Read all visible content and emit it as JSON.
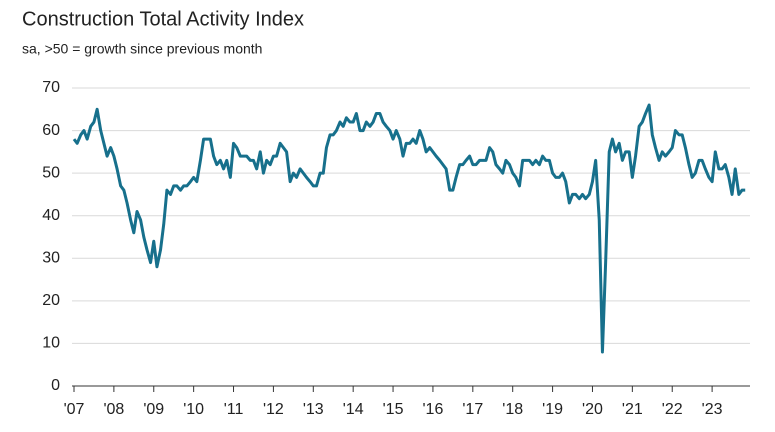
{
  "chart_data": {
    "type": "line",
    "title": "Construction Total Activity Index",
    "subtitle": "sa, >50 = growth since previous month",
    "x": [
      2007.0,
      2007.08,
      2007.17,
      2007.25,
      2007.33,
      2007.42,
      2007.5,
      2007.58,
      2007.67,
      2007.75,
      2007.83,
      2007.92,
      2008.0,
      2008.08,
      2008.17,
      2008.25,
      2008.33,
      2008.42,
      2008.5,
      2008.58,
      2008.67,
      2008.75,
      2008.83,
      2008.92,
      2009.0,
      2009.08,
      2009.17,
      2009.25,
      2009.33,
      2009.42,
      2009.5,
      2009.58,
      2009.67,
      2009.75,
      2009.83,
      2009.92,
      2010.0,
      2010.08,
      2010.17,
      2010.25,
      2010.33,
      2010.42,
      2010.5,
      2010.58,
      2010.67,
      2010.75,
      2010.83,
      2010.92,
      2011.0,
      2011.08,
      2011.17,
      2011.25,
      2011.33,
      2011.42,
      2011.5,
      2011.58,
      2011.67,
      2011.75,
      2011.83,
      2011.92,
      2012.0,
      2012.08,
      2012.17,
      2012.25,
      2012.33,
      2012.42,
      2012.5,
      2012.58,
      2012.67,
      2012.75,
      2012.83,
      2012.92,
      2013.0,
      2013.08,
      2013.17,
      2013.25,
      2013.33,
      2013.42,
      2013.5,
      2013.58,
      2013.67,
      2013.75,
      2013.83,
      2013.92,
      2014.0,
      2014.08,
      2014.17,
      2014.25,
      2014.33,
      2014.42,
      2014.5,
      2014.58,
      2014.67,
      2014.75,
      2014.83,
      2014.92,
      2015.0,
      2015.08,
      2015.17,
      2015.25,
      2015.33,
      2015.42,
      2015.5,
      2015.58,
      2015.67,
      2015.75,
      2015.83,
      2015.92,
      2016.0,
      2016.08,
      2016.17,
      2016.25,
      2016.33,
      2016.42,
      2016.5,
      2016.58,
      2016.67,
      2016.75,
      2016.83,
      2016.92,
      2017.0,
      2017.08,
      2017.17,
      2017.25,
      2017.33,
      2017.42,
      2017.5,
      2017.58,
      2017.67,
      2017.75,
      2017.83,
      2017.92,
      2018.0,
      2018.08,
      2018.17,
      2018.25,
      2018.33,
      2018.42,
      2018.5,
      2018.58,
      2018.67,
      2018.75,
      2018.83,
      2018.92,
      2019.0,
      2019.08,
      2019.17,
      2019.25,
      2019.33,
      2019.42,
      2019.5,
      2019.58,
      2019.67,
      2019.75,
      2019.83,
      2019.92,
      2020.0,
      2020.08,
      2020.17,
      2020.25,
      2020.33,
      2020.42,
      2020.5,
      2020.58,
      2020.67,
      2020.75,
      2020.83,
      2020.92,
      2021.0,
      2021.08,
      2021.17,
      2021.25,
      2021.33,
      2021.42,
      2021.5,
      2021.58,
      2021.67,
      2021.75,
      2021.83,
      2021.92,
      2022.0,
      2022.08,
      2022.17,
      2022.25,
      2022.33,
      2022.42,
      2022.5,
      2022.58,
      2022.67,
      2022.75,
      2022.83,
      2022.92,
      2023.0,
      2023.08,
      2023.17,
      2023.25,
      2023.33,
      2023.42,
      2023.5,
      2023.58,
      2023.67,
      2023.75,
      2023.83
    ],
    "values": [
      58,
      57,
      59,
      60,
      58,
      61,
      62,
      65,
      60,
      57,
      54,
      56,
      54,
      51,
      47,
      46,
      43,
      39,
      36,
      41,
      39,
      35,
      32,
      29,
      34,
      28,
      32,
      38,
      46,
      45,
      47,
      47,
      46,
      47,
      47,
      48,
      49,
      48,
      53,
      58,
      58,
      58,
      54,
      52,
      53,
      51,
      53,
      49,
      57,
      56,
      54,
      54,
      54,
      53,
      53,
      51,
      55,
      50,
      53,
      52,
      54,
      54,
      57,
      56,
      55,
      48,
      50,
      49,
      51,
      50,
      49,
      48,
      47,
      47,
      50,
      50,
      56,
      59,
      59,
      60,
      62,
      61,
      63,
      62,
      62,
      64,
      60,
      60,
      62,
      61,
      62,
      64,
      64,
      62,
      61,
      60,
      58,
      60,
      58,
      54,
      57,
      57,
      58,
      57,
      60,
      58,
      55,
      56,
      55,
      54,
      53,
      52,
      51,
      46,
      46,
      49,
      52,
      52,
      53,
      54,
      52,
      52,
      53,
      53,
      53,
      56,
      55,
      52,
      51,
      50,
      53,
      52,
      50,
      49,
      47,
      53,
      53,
      53,
      52,
      53,
      52,
      54,
      53,
      53,
      50,
      49,
      49,
      50,
      48,
      43,
      45,
      45,
      44,
      45,
      44,
      45,
      48,
      53,
      39,
      8,
      29,
      55,
      58,
      55,
      57,
      53,
      55,
      55,
      49,
      54,
      61,
      62,
      64,
      66,
      59,
      56,
      53,
      55,
      54,
      55,
      56,
      60,
      59,
      59,
      56,
      52,
      49,
      50,
      53,
      53,
      51,
      49,
      48,
      55,
      51,
      51,
      52,
      49,
      45,
      51,
      45,
      46,
      46
    ],
    "color": "#17708c",
    "xlim": [
      2006.95,
      2023.95
    ],
    "xticks": [
      {
        "value": 2007,
        "label": "'07"
      },
      {
        "value": 2008,
        "label": "'08"
      },
      {
        "value": 2009,
        "label": "'09"
      },
      {
        "value": 2010,
        "label": "'10"
      },
      {
        "value": 2011,
        "label": "'11"
      },
      {
        "value": 2012,
        "label": "'12"
      },
      {
        "value": 2013,
        "label": "'13"
      },
      {
        "value": 2014,
        "label": "'14"
      },
      {
        "value": 2015,
        "label": "'15"
      },
      {
        "value": 2016,
        "label": "'16"
      },
      {
        "value": 2017,
        "label": "'17"
      },
      {
        "value": 2018,
        "label": "'18"
      },
      {
        "value": 2019,
        "label": "'19"
      },
      {
        "value": 2020,
        "label": "'20"
      },
      {
        "value": 2021,
        "label": "'21"
      },
      {
        "value": 2022,
        "label": "'22"
      },
      {
        "value": 2023,
        "label": "'23"
      }
    ],
    "ylim": [
      0,
      70
    ],
    "yticks": [
      0,
      10,
      20,
      30,
      40,
      50,
      60,
      70
    ],
    "grid": true
  }
}
